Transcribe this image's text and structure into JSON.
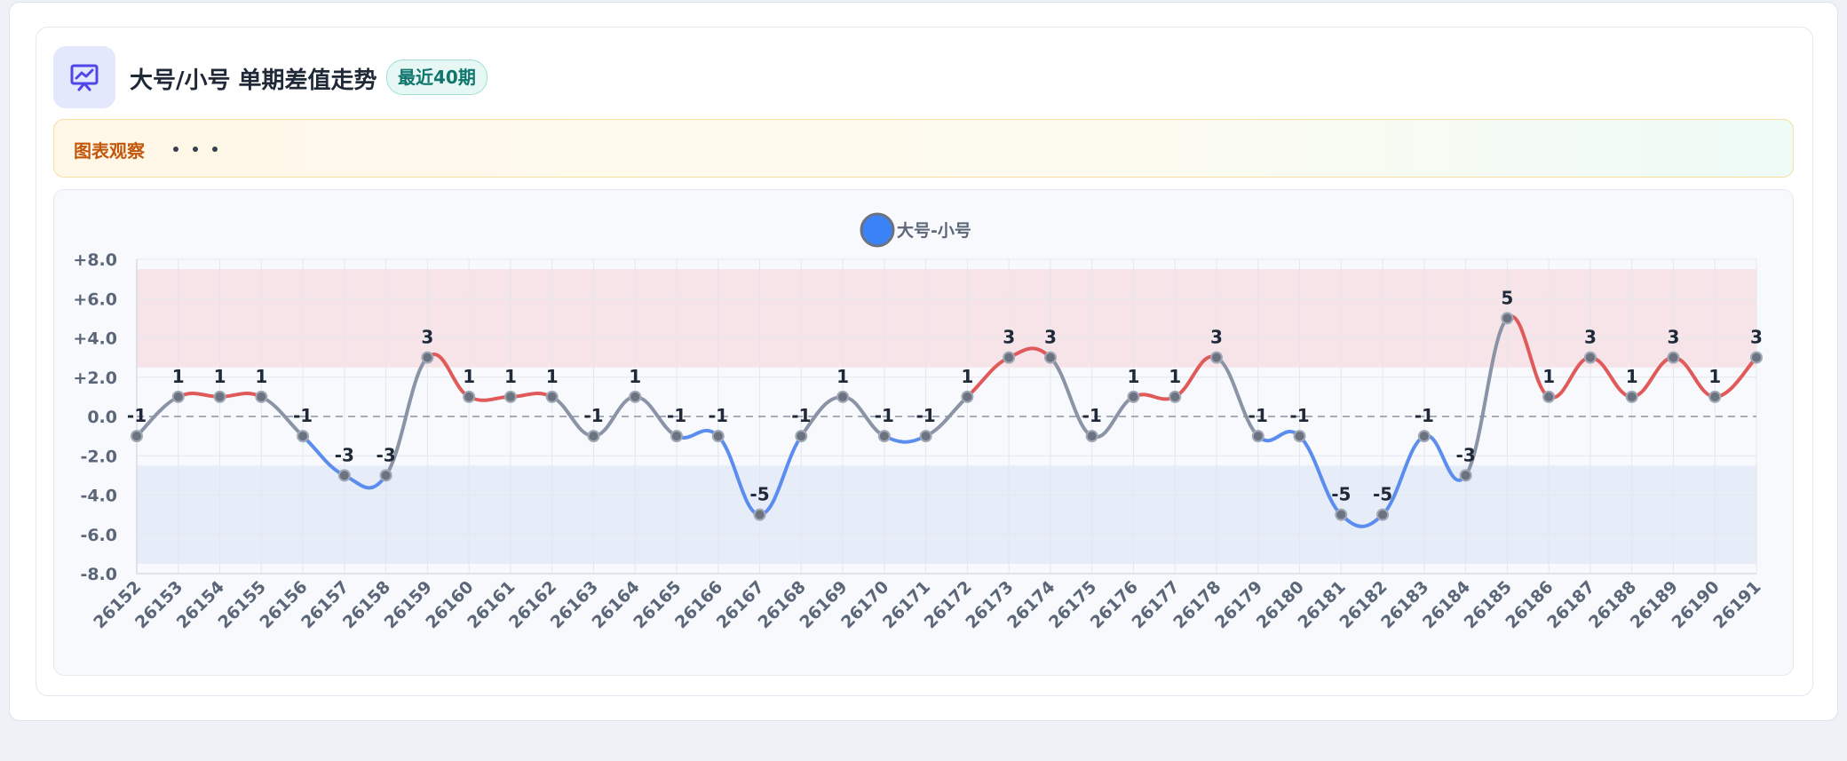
{
  "header": {
    "title": "大号/小号 单期差值走势",
    "badge": "最近40期"
  },
  "observation": {
    "label": "图表观察"
  },
  "chart_data": {
    "type": "line",
    "categories": [
      "26152",
      "26153",
      "26154",
      "26155",
      "26156",
      "26157",
      "26158",
      "26159",
      "26160",
      "26161",
      "26162",
      "26163",
      "26164",
      "26165",
      "26166",
      "26167",
      "26168",
      "26169",
      "26170",
      "26171",
      "26172",
      "26173",
      "26174",
      "26175",
      "26176",
      "26177",
      "26178",
      "26179",
      "26180",
      "26181",
      "26182",
      "26183",
      "26184",
      "26185",
      "26186",
      "26187",
      "26188",
      "26189",
      "26190",
      "26191"
    ],
    "series": [
      {
        "name": "大号-小号",
        "color": "#3b82f6",
        "values": [
          -1,
          1,
          1,
          1,
          -1,
          -3,
          -3,
          3,
          1,
          1,
          1,
          -1,
          1,
          -1,
          -1,
          -5,
          -1,
          1,
          -1,
          -1,
          1,
          3,
          3,
          -1,
          1,
          1,
          3,
          -1,
          -1,
          -5,
          -5,
          -1,
          -3,
          5,
          1,
          3,
          1,
          3,
          1,
          3
        ]
      }
    ],
    "segment_colors": {
      "positive": "#e05a5a",
      "negative": "#5b8def",
      "crossing": "#8a94a6"
    },
    "bands": [
      {
        "from": 2.5,
        "to": 7.5,
        "color": "#f6e4e8"
      },
      {
        "from": -7.5,
        "to": -2.5,
        "color": "#e6ecf8"
      }
    ],
    "ylim": [
      -8,
      8
    ],
    "yticks": [
      {
        "value": 8,
        "label": "+8.0"
      },
      {
        "value": 6,
        "label": "+6.0"
      },
      {
        "value": 4,
        "label": "+4.0"
      },
      {
        "value": 2,
        "label": "+2.0"
      },
      {
        "value": 0,
        "label": "0.0"
      },
      {
        "value": -2,
        "label": "-2.0"
      },
      {
        "value": -4,
        "label": "-4.0"
      },
      {
        "value": -6,
        "label": "-6.0"
      },
      {
        "value": -8,
        "label": "-8.0"
      }
    ],
    "grid": true
  }
}
